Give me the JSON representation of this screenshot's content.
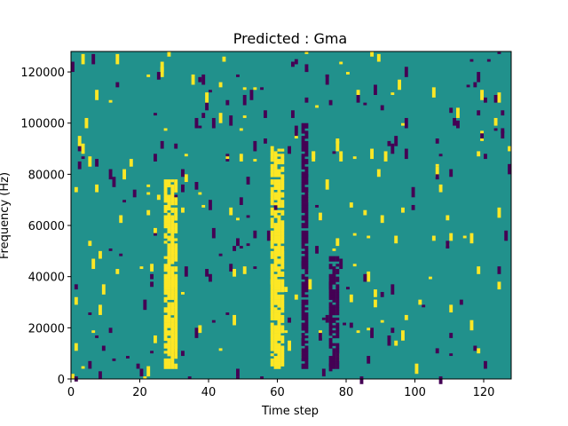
{
  "chart_data": {
    "type": "heatmap",
    "title": "Predicted : Gma",
    "xlabel": "Time step",
    "ylabel": "Frequency (Hz)",
    "xlim": [
      0,
      128
    ],
    "ylim": [
      0,
      128000
    ],
    "x_ticks": [
      0,
      20,
      40,
      60,
      80,
      100,
      120
    ],
    "y_ticks": [
      0,
      20000,
      40000,
      60000,
      80000,
      100000,
      120000
    ],
    "grid": false,
    "legend": "none",
    "colors": {
      "background": "#21918c",
      "high": "#fde725",
      "low": "#440154"
    },
    "bands": {
      "high": [
        {
          "x": [
            27,
            31
          ],
          "y": [
            4000,
            78000
          ]
        },
        {
          "x": [
            58,
            62
          ],
          "y": [
            4000,
            90000
          ]
        }
      ],
      "low": [
        {
          "x": [
            67,
            69
          ],
          "y": [
            4000,
            100000
          ]
        },
        {
          "x": [
            75,
            78
          ],
          "y": [
            4000,
            48000
          ]
        }
      ]
    },
    "scatter_seed": 7
  }
}
